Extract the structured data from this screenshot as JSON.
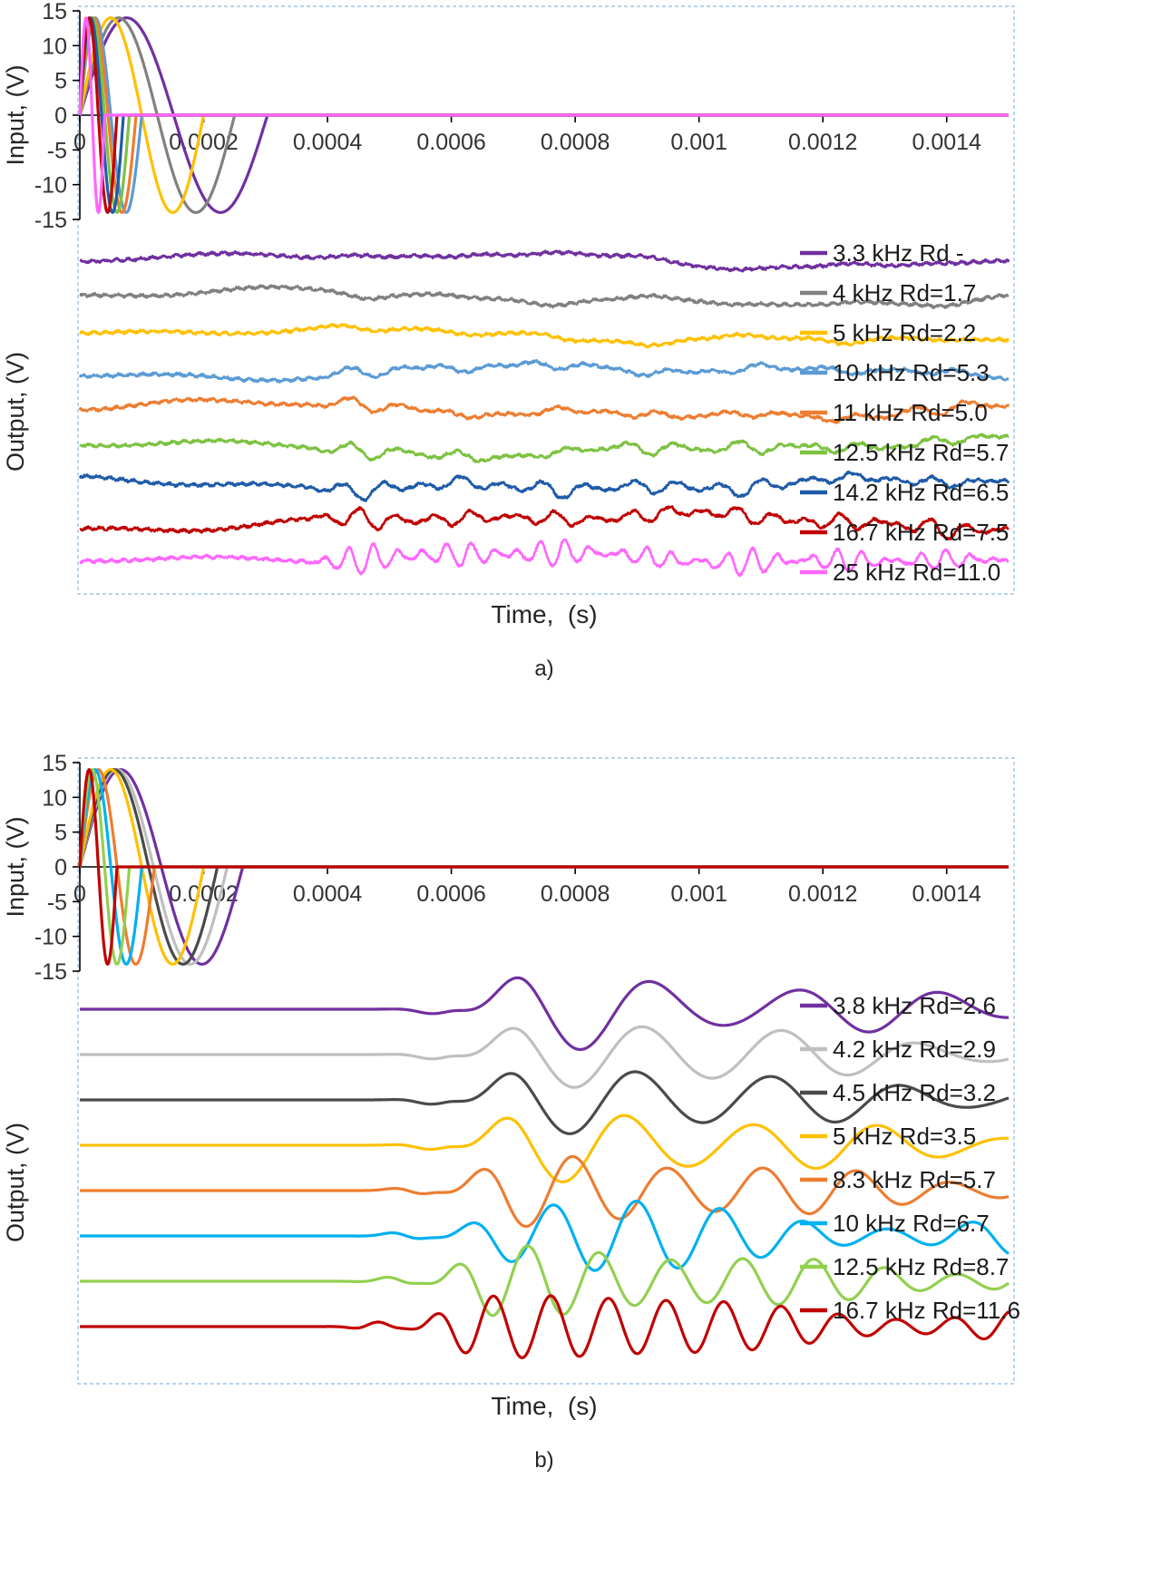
{
  "chart_data": [
    {
      "id": "a",
      "type": "line",
      "caption": "a)",
      "output_style": "noisy",
      "input_axis": {
        "ylabel": "Input, (V)",
        "ylim": [
          -15,
          15
        ],
        "yticks": [
          15,
          10,
          5,
          0,
          -5,
          -10,
          -15
        ],
        "xlim": [
          0,
          0.0015
        ],
        "xticks": [
          0,
          0.0002,
          0.0004,
          0.0006,
          0.0008,
          0.001,
          0.0012,
          0.0014
        ],
        "xtick_labels": [
          "0",
          "0.0002",
          "0.0004",
          "0.0006",
          "0.0008",
          "0.001",
          "0.0012",
          "0.0014"
        ],
        "amplitude_v": 14,
        "waveform": "single-cycle sine burst per series, zero afterwards"
      },
      "output_axis": {
        "ylabel": "Output, (V)",
        "xlabel": "Time,  (s)",
        "description": "vertically offset noisy response traces, one per excitation frequency"
      },
      "legend_position": "right-inside",
      "grid": false,
      "border_color": "#9dc3e6",
      "series": [
        {
          "label": "3.3 kHz Rd -",
          "freq_khz": 3.3,
          "rd": "-",
          "color": "#7030A0"
        },
        {
          "label": "4 kHz Rd=1.7",
          "freq_khz": 4,
          "rd": 1.7,
          "color": "#808080"
        },
        {
          "label": "5 kHz Rd=2.2",
          "freq_khz": 5,
          "rd": 2.2,
          "color": "#FFC000"
        },
        {
          "label": "10 kHz Rd=5.3",
          "freq_khz": 10,
          "rd": 5.3,
          "color": "#5B9BD5"
        },
        {
          "label": "11 kHz Rd=5.0",
          "freq_khz": 11,
          "rd": 5.0,
          "color": "#ED7D31"
        },
        {
          "label": "12.5 kHz Rd=5.7",
          "freq_khz": 12.5,
          "rd": 5.7,
          "color": "#7DC242"
        },
        {
          "label": "14.2 kHz Rd=6.5",
          "freq_khz": 14.2,
          "rd": 6.5,
          "color": "#1F5BA8"
        },
        {
          "label": "16.7 kHz Rd=7.5",
          "freq_khz": 16.7,
          "rd": 7.5,
          "color": "#C00000"
        },
        {
          "label": "25 kHz Rd=11.0",
          "freq_khz": 25,
          "rd": 11.0,
          "color": "#FF66FF"
        }
      ]
    },
    {
      "id": "b",
      "type": "line",
      "caption": "b)",
      "output_style": "dispersive",
      "input_axis": {
        "ylabel": "Input, (V)",
        "ylim": [
          -15,
          15
        ],
        "yticks": [
          15,
          10,
          5,
          0,
          -5,
          -10,
          -15
        ],
        "xlim": [
          0,
          0.0015
        ],
        "xticks": [
          0,
          0.0002,
          0.0004,
          0.0006,
          0.0008,
          0.001,
          0.0012,
          0.0014
        ],
        "xtick_labels": [
          "0",
          "0.0002",
          "0.0004",
          "0.0006",
          "0.0008",
          "0.001",
          "0.0012",
          "0.0014"
        ],
        "amplitude_v": 14,
        "waveform": "single-cycle sine burst per series, zero afterwards"
      },
      "output_axis": {
        "ylabel": "Output, (V)",
        "xlabel": "Time,  (s)",
        "description": "vertically offset smooth wave-packet arrivals starting near 0.0006 s"
      },
      "legend_position": "right-inside",
      "grid": false,
      "border_color": "#9dc3e6",
      "series": [
        {
          "label": "3.8 kHz Rd=2.6",
          "freq_khz": 3.8,
          "rd": 2.6,
          "color": "#7030A0"
        },
        {
          "label": "4.2 kHz Rd=2.9",
          "freq_khz": 4.2,
          "rd": 2.9,
          "color": "#BFBFBF"
        },
        {
          "label": "4.5 kHz Rd=3.2",
          "freq_khz": 4.5,
          "rd": 3.2,
          "color": "#4A4A4A"
        },
        {
          "label": "5 kHz Rd=3.5",
          "freq_khz": 5,
          "rd": 3.5,
          "color": "#FFC000"
        },
        {
          "label": "8.3 kHz Rd=5.7",
          "freq_khz": 8.3,
          "rd": 5.7,
          "color": "#ED7D31"
        },
        {
          "label": "10 kHz Rd=6.7",
          "freq_khz": 10,
          "rd": 6.7,
          "color": "#00B0F0"
        },
        {
          "label": "12.5 kHz Rd=8.7",
          "freq_khz": 12.5,
          "rd": 8.7,
          "color": "#92D050"
        },
        {
          "label": "16.7 kHz Rd=11.6",
          "freq_khz": 16.7,
          "rd": 11.6,
          "color": "#C00000"
        }
      ]
    }
  ]
}
